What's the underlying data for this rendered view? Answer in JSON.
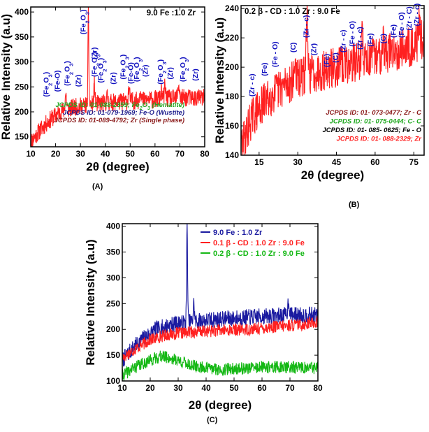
{
  "colors": {
    "red": "#ff2020",
    "blue": "#1a1aa0",
    "green": "#14b814",
    "label_blue": "#1010c0",
    "darkred": "#8b1a1a",
    "jcpds_green": "#22aa22",
    "jcpds_blue": "#1a1a8b",
    "black": "#000000"
  },
  "chart_data": [
    {
      "type": "line",
      "panel_label": "(A)",
      "title": "9.0 Fe :1.0 Zr",
      "xlabel": "2θ (degree)",
      "ylabel": "Relative Intensity (a.u)",
      "xlim": [
        10,
        80
      ],
      "ylim": [
        130,
        410
      ],
      "xticks": [
        "10",
        "20",
        "30",
        "40",
        "50",
        "60",
        "70",
        "80"
      ],
      "yticks": [
        "150",
        "200",
        "250",
        "300",
        "350",
        "400"
      ],
      "series": [
        {
          "name": "9.0 Fe :1.0 Zr",
          "color": "#ff2020",
          "seed": 11,
          "base": [
            [
              10,
              140
            ],
            [
              14,
              165
            ],
            [
              18,
              185
            ],
            [
              22,
              200
            ],
            [
              28,
              210
            ],
            [
              35,
              215
            ],
            [
              45,
              220
            ],
            [
              60,
              225
            ],
            [
              70,
              228
            ],
            [
              80,
              228
            ]
          ],
          "noise": 18,
          "peaks": [
            [
              33.2,
              400,
              0.25
            ],
            [
              35.6,
              255,
              0.3
            ],
            [
              24.1,
              235,
              0.4
            ],
            [
              49.5,
              245,
              0.4
            ],
            [
              54.1,
              248,
              0.4
            ],
            [
              62.5,
              240,
              0.4
            ],
            [
              64,
              250,
              0.4
            ],
            [
              69.5,
              255,
              0.4
            ],
            [
              40.8,
              230,
              0.4
            ]
          ]
        }
      ],
      "peak_labels": [
        {
          "text": "(Fe2O3)",
          "x": 16,
          "y": 230
        },
        {
          "text": "(Fe-O)",
          "x": 20.5,
          "y": 240
        },
        {
          "text": "(Fe2O3)",
          "x": 24.5,
          "y": 252
        },
        {
          "text": "(Zr)",
          "x": 29,
          "y": 250
        },
        {
          "text": "(Fe2O3)",
          "x": 31,
          "y": 355
        },
        {
          "text": "(Zr)",
          "x": 35.5,
          "y": 305
        },
        {
          "text": "(Fe2O3)",
          "x": 35.5,
          "y": 270
        },
        {
          "text": "(Fe2O3)",
          "x": 38,
          "y": 258
        },
        {
          "text": "(Zr)",
          "x": 43,
          "y": 255
        },
        {
          "text": "(Fe2O3)",
          "x": 47,
          "y": 265
        },
        {
          "text": "(Fe-O)",
          "x": 50,
          "y": 256
        },
        {
          "text": "(Fe2O3)",
          "x": 52.5,
          "y": 260
        },
        {
          "text": "(Zr)",
          "x": 56,
          "y": 270
        },
        {
          "text": "(Fe2O3)",
          "x": 62,
          "y": 255
        },
        {
          "text": "(Zr)",
          "x": 66,
          "y": 265
        },
        {
          "text": "(Fe2O3)",
          "x": 71,
          "y": 260
        },
        {
          "text": "(Zr)",
          "x": 76,
          "y": 262
        }
      ],
      "annotations": [
        {
          "text": "JCPDS ID: 01-088-2359; Fe2O3 (Hematite)",
          "color": "#22aa22"
        },
        {
          "text": "JCPDS ID: 01-079-1969; Fe-O (Wustite)",
          "color": "#1a1a8b"
        },
        {
          "text": "JCPDS ID: 01-089-4792; Zr (Single phase)",
          "color": "#8b1a1a"
        }
      ]
    },
    {
      "type": "line",
      "panel_label": "(B)",
      "title": "0.2 β - CD : 1.0 Zr : 9.0 Fe",
      "xlabel": "2θ (degree)",
      "ylabel": "Relative Intensity (a.u)",
      "xlim": [
        8,
        79
      ],
      "ylim": [
        140,
        242
      ],
      "xticks": [
        "15",
        "30",
        "45",
        "60",
        "75"
      ],
      "yticks": [
        "140",
        "160",
        "180",
        "200",
        "220",
        "240"
      ],
      "series": [
        {
          "name": "0.2 β - CD : 1.0 Zr : 9.0 Fe",
          "color": "#ff2020",
          "seed": 29,
          "base": [
            [
              8,
              145
            ],
            [
              12,
              165
            ],
            [
              18,
              178
            ],
            [
              25,
              188
            ],
            [
              35,
              196
            ],
            [
              45,
              200
            ],
            [
              55,
              205
            ],
            [
              65,
              210
            ],
            [
              75,
              215
            ],
            [
              79,
              220
            ]
          ],
          "noise": 14,
          "peaks": [
            [
              33.5,
              235,
              0.4
            ],
            [
              29,
              205,
              0.4
            ],
            [
              55,
              222,
              0.4
            ],
            [
              63,
              222,
              0.4
            ],
            [
              77,
              230,
              0.4
            ]
          ]
        }
      ],
      "peak_labels": [
        {
          "text": "(Zr - c)",
          "x": 12,
          "y": 180
        },
        {
          "text": "(Fe)",
          "x": 17,
          "y": 194
        },
        {
          "text": "(Fe - O)",
          "x": 21,
          "y": 200
        },
        {
          "text": "(C)",
          "x": 28,
          "y": 210
        },
        {
          "text": "(Zr - c)",
          "x": 33,
          "y": 220
        },
        {
          "text": "(Zr)",
          "x": 36,
          "y": 208
        },
        {
          "text": "(Fe)",
          "x": 41,
          "y": 200
        },
        {
          "text": "(C)",
          "x": 44.5,
          "y": 203
        },
        {
          "text": "(Zr - c)",
          "x": 47.5,
          "y": 210
        },
        {
          "text": "(Fe - O)",
          "x": 51,
          "y": 214
        },
        {
          "text": "(Zr - c)",
          "x": 54,
          "y": 212
        },
        {
          "text": "(Fe)",
          "x": 58,
          "y": 214
        },
        {
          "text": "(C)",
          "x": 63,
          "y": 216
        },
        {
          "text": "(Fe)",
          "x": 67,
          "y": 220
        },
        {
          "text": "(Fe - O)",
          "x": 70,
          "y": 220
        },
        {
          "text": "(Zr - C)",
          "x": 73,
          "y": 225
        },
        {
          "text": "(Zr - c)",
          "x": 76,
          "y": 228
        }
      ],
      "annotations": [
        {
          "text": "JCPDS ID: 01- 073-0477; Zr - C",
          "color": "#8b1a1a"
        },
        {
          "text": "JCPDS ID: 01- 075-0444; C- C",
          "color": "#22aa22"
        },
        {
          "text": "JCPDS ID: 01- 085- 0625; Fe - O",
          "color": "#000000"
        },
        {
          "text": "JCPDS ID: 01- 088-2329; Zr",
          "color": "#ff2020"
        }
      ]
    },
    {
      "type": "line",
      "panel_label": "(C)",
      "title": "",
      "xlabel": "2θ (degree)",
      "ylabel": "Relative Intensity (a.u)",
      "xlim": [
        10,
        80
      ],
      "ylim": [
        100,
        405
      ],
      "xticks": [
        "10",
        "20",
        "30",
        "40",
        "50",
        "60",
        "70",
        "80"
      ],
      "yticks": [
        "100",
        "150",
        "200",
        "250",
        "300",
        "350",
        "400"
      ],
      "series": [
        {
          "name": "9.0 Fe : 1.0 Zr",
          "color": "#1a1aa0",
          "seed": 7,
          "base": [
            [
              10,
              140
            ],
            [
              14,
              165
            ],
            [
              18,
              185
            ],
            [
              22,
              200
            ],
            [
              28,
              210
            ],
            [
              35,
              215
            ],
            [
              45,
              220
            ],
            [
              60,
              225
            ],
            [
              70,
              228
            ],
            [
              80,
              228
            ]
          ],
          "noise": 16,
          "peaks": [
            [
              33.2,
              398,
              0.25
            ],
            [
              35.6,
              250,
              0.3
            ],
            [
              69.5,
              255,
              0.4
            ]
          ]
        },
        {
          "name": "0.1 β - CD : 1.0 Zr : 9.0 Fe",
          "color": "#ff2020",
          "seed": 17,
          "base": [
            [
              10,
              145
            ],
            [
              14,
              160
            ],
            [
              20,
              180
            ],
            [
              26,
              190
            ],
            [
              35,
              195
            ],
            [
              45,
              198
            ],
            [
              55,
              200
            ],
            [
              65,
              205
            ],
            [
              75,
              210
            ],
            [
              80,
              215
            ]
          ],
          "noise": 12,
          "peaks": []
        },
        {
          "name": "0.2 β - CD : 1.0 Zr : 9.0 Fe",
          "color": "#14b814",
          "seed": 41,
          "base": [
            [
              10,
              110
            ],
            [
              14,
              125
            ],
            [
              19,
              138
            ],
            [
              24,
              148
            ],
            [
              30,
              140
            ],
            [
              36,
              128
            ],
            [
              45,
              122
            ],
            [
              55,
              125
            ],
            [
              65,
              127
            ],
            [
              80,
              125
            ]
          ],
          "noise": 12,
          "peaks": []
        }
      ],
      "legend": [
        {
          "text": "9.0 Fe : 1.0 Zr",
          "color": "#1a1aa0"
        },
        {
          "text": "0.1 β - CD : 1.0 Zr : 9.0 Fe",
          "color": "#ff2020"
        },
        {
          "text": "0.2 β - CD : 1.0 Zr : 9.0 Fe",
          "color": "#14b814"
        }
      ]
    }
  ]
}
